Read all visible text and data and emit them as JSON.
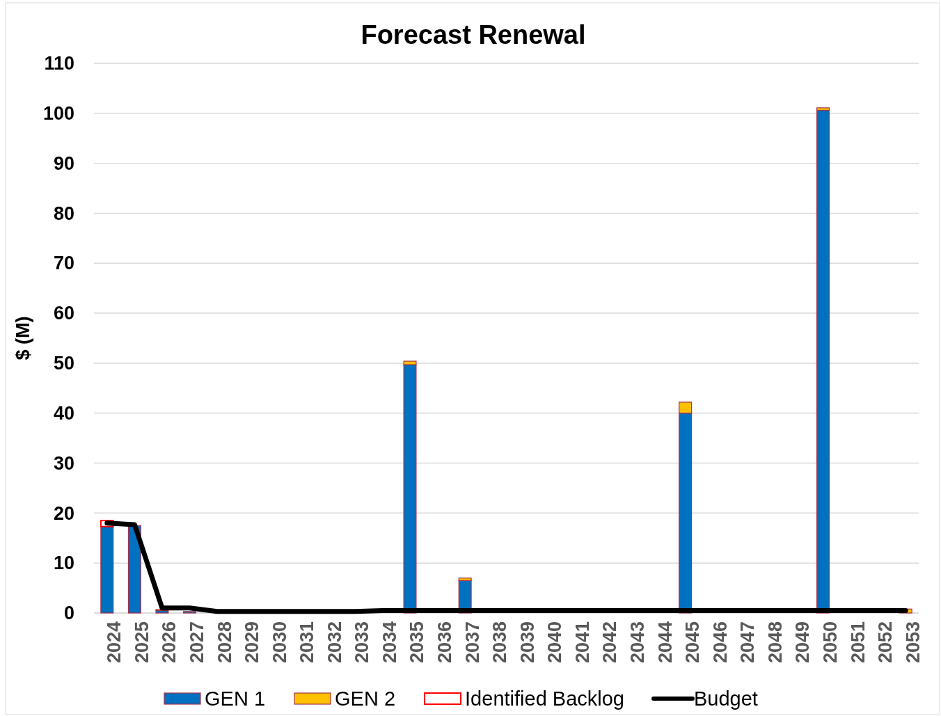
{
  "chart_data": {
    "type": "bar",
    "title": "Forecast Renewal",
    "ylabel": "$ (M)",
    "categories": [
      "2024",
      "2025",
      "2026",
      "2027",
      "2028",
      "2029",
      "2030",
      "2031",
      "2032",
      "2033",
      "2034",
      "2035",
      "2036",
      "2037",
      "2038",
      "2039",
      "2040",
      "2041",
      "2042",
      "2043",
      "2044",
      "2045",
      "2046",
      "2047",
      "2048",
      "2049",
      "2050",
      "2051",
      "2052",
      "2053"
    ],
    "stacked": true,
    "series": [
      {
        "name": "GEN 1",
        "color": "#0070c0",
        "values": [
          17.3,
          17.5,
          0.5,
          0.3,
          0,
          0,
          0,
          0,
          0,
          0,
          0,
          49.7,
          0,
          6.5,
          0,
          0,
          0,
          0,
          0,
          0,
          0,
          40,
          0,
          0,
          0,
          0,
          100.6,
          0,
          0,
          0
        ]
      },
      {
        "name": "GEN 2",
        "color": "#ffc000",
        "values": [
          0,
          0,
          0.2,
          0,
          0,
          0,
          0,
          0,
          0,
          0,
          0,
          0.7,
          0,
          0.5,
          0,
          0,
          0,
          0,
          0,
          0,
          0,
          2.2,
          0,
          0,
          0,
          0,
          0.5,
          0,
          0,
          0.8
        ]
      },
      {
        "name": "Identified Backlog",
        "color": "#ff0000",
        "values": [
          1.2,
          0,
          0,
          0,
          0,
          0,
          0,
          0,
          0,
          0,
          0,
          0,
          0,
          0,
          0,
          0,
          0,
          0,
          0,
          0,
          0,
          0,
          0,
          0,
          0,
          0,
          0,
          0,
          0,
          0
        ]
      },
      {
        "name": "Budget",
        "type": "line",
        "color": "#000000",
        "values": [
          18,
          17.7,
          1,
          1,
          0.3,
          0.3,
          0.3,
          0.3,
          0.3,
          0.3,
          0.5,
          0.5,
          0.5,
          0.5,
          0.5,
          0.5,
          0.5,
          0.5,
          0.5,
          0.5,
          0.5,
          0.5,
          0.5,
          0.5,
          0.5,
          0.5,
          0.5,
          0.5,
          0.5,
          0.5
        ]
      }
    ],
    "ylim": [
      0,
      110
    ],
    "yticks": [
      0,
      10,
      20,
      30,
      40,
      50,
      60,
      70,
      80,
      90,
      100,
      110
    ],
    "grid": "y",
    "legend": "bottom",
    "marker": "none",
    "line_style": "solid"
  }
}
